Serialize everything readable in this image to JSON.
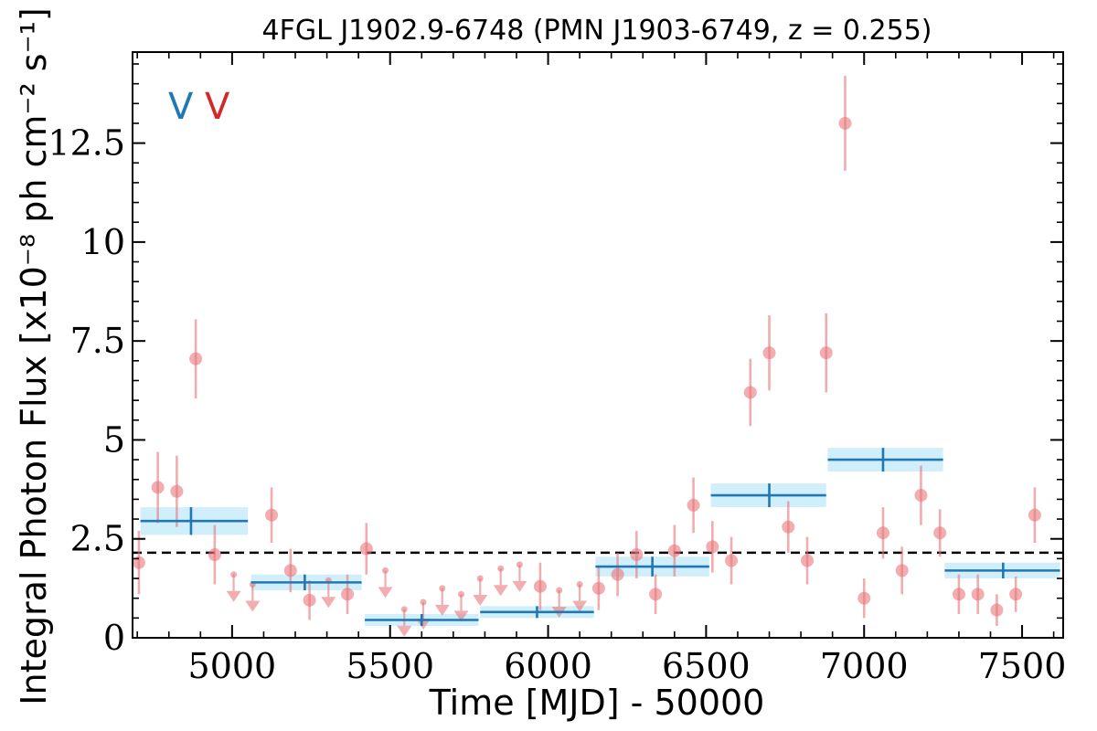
{
  "chart_data": {
    "type": "scatter",
    "title": "4FGL J1902.9-6748 (PMN J1903-6749, z = 0.255)",
    "xlabel": "Time [MJD] - 50000",
    "ylabel": "Integral Photon Flux [x10⁻⁸ ph cm⁻² s⁻¹]",
    "xlim": [
      4685,
      7630
    ],
    "ylim": [
      0,
      14.8
    ],
    "xticks": [
      5000,
      5500,
      6000,
      6500,
      7000,
      7500
    ],
    "yticks": [
      0,
      2.5,
      5,
      7.5,
      10,
      12.5
    ],
    "ytick_labels": [
      "0",
      "2.5",
      "5",
      "7.5",
      "10",
      "12.5"
    ],
    "grid": false,
    "legend": {
      "placement": "top-left",
      "entries": [
        {
          "label": "V",
          "color": "#1f77b4"
        },
        {
          "label": "V",
          "color": "#d62728"
        }
      ]
    },
    "reference_line": {
      "y": 2.15,
      "style": "dashed",
      "color": "#000000"
    },
    "series": [
      {
        "kind": "detections",
        "color": "#e8767a",
        "points": [
          {
            "x": 4705,
            "y": 1.9,
            "err": 0.8
          },
          {
            "x": 4765,
            "y": 3.8,
            "err": 0.9
          },
          {
            "x": 4825,
            "y": 3.7,
            "err": 0.9
          },
          {
            "x": 4885,
            "y": 7.05,
            "err": 1.0
          },
          {
            "x": 4945,
            "y": 2.1,
            "err": 0.75
          },
          {
            "x": 5125,
            "y": 3.1,
            "err": 0.7
          },
          {
            "x": 5185,
            "y": 1.7,
            "err": 0.55
          },
          {
            "x": 5245,
            "y": 0.95,
            "err": 0.5
          },
          {
            "x": 5365,
            "y": 1.1,
            "err": 0.5
          },
          {
            "x": 5425,
            "y": 2.25,
            "err": 0.65
          },
          {
            "x": 5975,
            "y": 1.3,
            "err": 0.6
          },
          {
            "x": 6160,
            "y": 1.25,
            "err": 0.55
          },
          {
            "x": 6220,
            "y": 1.6,
            "err": 0.55
          },
          {
            "x": 6280,
            "y": 2.1,
            "err": 0.6
          },
          {
            "x": 6340,
            "y": 1.1,
            "err": 0.5
          },
          {
            "x": 6400,
            "y": 2.2,
            "err": 0.65
          },
          {
            "x": 6460,
            "y": 3.35,
            "err": 0.7
          },
          {
            "x": 6520,
            "y": 2.3,
            "err": 0.65
          },
          {
            "x": 6580,
            "y": 1.95,
            "err": 0.6
          },
          {
            "x": 6640,
            "y": 6.2,
            "err": 0.85
          },
          {
            "x": 6700,
            "y": 7.2,
            "err": 0.95
          },
          {
            "x": 6760,
            "y": 2.8,
            "err": 0.65
          },
          {
            "x": 6820,
            "y": 1.95,
            "err": 0.6
          },
          {
            "x": 6880,
            "y": 7.2,
            "err": 1.0
          },
          {
            "x": 6940,
            "y": 13.0,
            "err": 1.2
          },
          {
            "x": 7000,
            "y": 1.0,
            "err": 0.5
          },
          {
            "x": 7060,
            "y": 2.65,
            "err": 0.65
          },
          {
            "x": 7120,
            "y": 1.7,
            "err": 0.6
          },
          {
            "x": 7180,
            "y": 3.6,
            "err": 0.75
          },
          {
            "x": 7240,
            "y": 2.65,
            "err": 0.6
          },
          {
            "x": 7300,
            "y": 1.1,
            "err": 0.5
          },
          {
            "x": 7360,
            "y": 1.1,
            "err": 0.5
          },
          {
            "x": 7420,
            "y": 0.7,
            "err": 0.4
          },
          {
            "x": 7480,
            "y": 1.1,
            "err": 0.45
          },
          {
            "x": 7540,
            "y": 3.1,
            "err": 0.7
          }
        ]
      },
      {
        "kind": "upper_limits",
        "color": "#e8767a",
        "points": [
          {
            "x": 5005,
            "y": 1.6
          },
          {
            "x": 5065,
            "y": 1.35
          },
          {
            "x": 5305,
            "y": 1.45
          },
          {
            "x": 5485,
            "y": 1.7
          },
          {
            "x": 5545,
            "y": 0.72
          },
          {
            "x": 5605,
            "y": 0.9
          },
          {
            "x": 5665,
            "y": 1.25
          },
          {
            "x": 5725,
            "y": 1.1
          },
          {
            "x": 5785,
            "y": 1.5
          },
          {
            "x": 5850,
            "y": 1.75
          },
          {
            "x": 5910,
            "y": 1.85
          },
          {
            "x": 6035,
            "y": 1.2
          },
          {
            "x": 6100,
            "y": 1.35
          }
        ]
      },
      {
        "kind": "binned",
        "color": "#1f77b4",
        "band_color": "#cdeefb",
        "bins": [
          {
            "x0": 4710,
            "x1": 5050,
            "y": 2.95,
            "ylo": 2.6,
            "yhi": 3.3,
            "xc": 4870
          },
          {
            "x0": 5060,
            "x1": 5410,
            "y": 1.4,
            "ylo": 1.2,
            "yhi": 1.6,
            "xc": 5230
          },
          {
            "x0": 5420,
            "x1": 5780,
            "y": 0.45,
            "ylo": 0.3,
            "yhi": 0.6,
            "xc": 5600
          },
          {
            "x0": 5785,
            "x1": 6145,
            "y": 0.65,
            "ylo": 0.5,
            "yhi": 0.8,
            "xc": 5965
          },
          {
            "x0": 6150,
            "x1": 6510,
            "y": 1.8,
            "ylo": 1.55,
            "yhi": 2.05,
            "xc": 6330
          },
          {
            "x0": 6515,
            "x1": 6880,
            "y": 3.6,
            "ylo": 3.3,
            "yhi": 3.9,
            "xc": 6700
          },
          {
            "x0": 6885,
            "x1": 7250,
            "y": 4.5,
            "ylo": 4.2,
            "yhi": 4.8,
            "xc": 7060
          },
          {
            "x0": 7255,
            "x1": 7620,
            "y": 1.7,
            "ylo": 1.5,
            "yhi": 1.9,
            "xc": 7440
          }
        ]
      }
    ]
  }
}
